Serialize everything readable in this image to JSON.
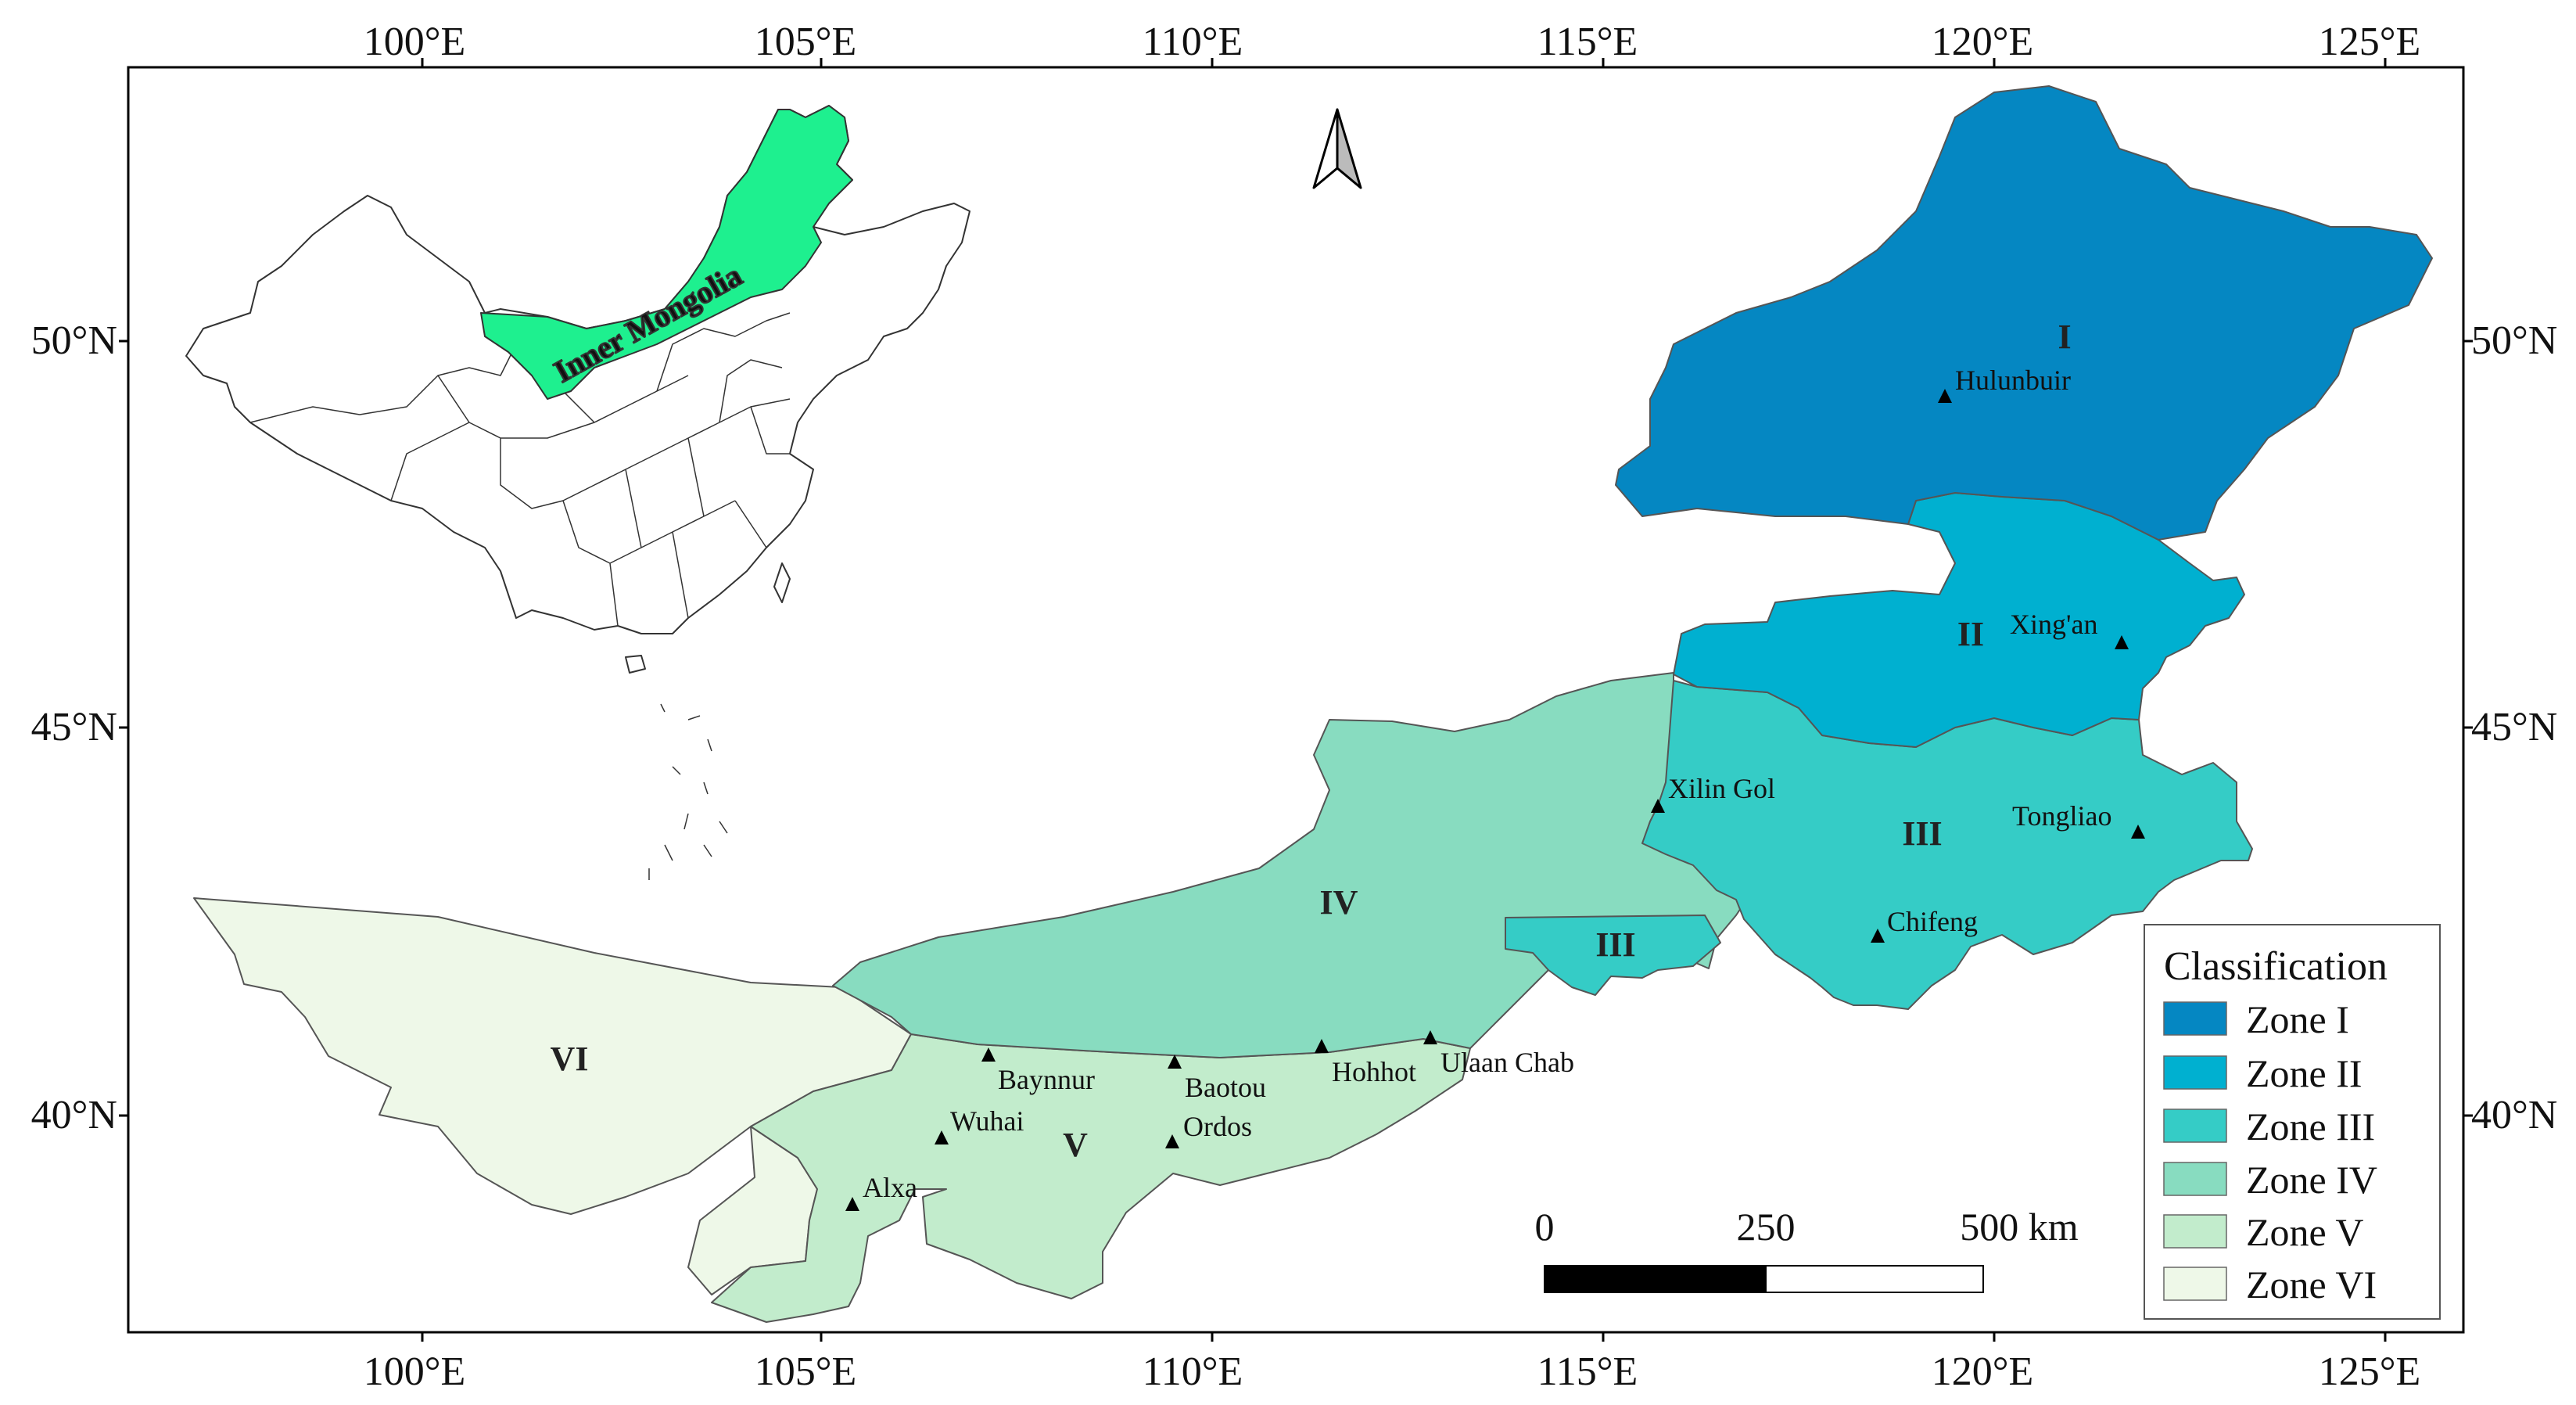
{
  "map": {
    "lon_labels": [
      "100°E",
      "105°E",
      "110°E",
      "115°E",
      "120°E",
      "125°E"
    ],
    "lat_labels": [
      "50°N",
      "45°N",
      "40°N"
    ],
    "inset_region_label": "Inner Mongolia",
    "zone_labels": [
      "I",
      "II",
      "III",
      "III",
      "IV",
      "V",
      "VI"
    ],
    "cities": [
      "Hulunbuir",
      "Xing'an",
      "Xilin Gol",
      "Tongliao",
      "Chifeng",
      "Baynnur",
      "Baotou",
      "Hohhot",
      "Ulaan Chab",
      "Wuhai",
      "Ordos",
      "Alxa"
    ],
    "north_arrow": "north-arrow-icon",
    "scale_bar": {
      "labels": [
        "0",
        "250",
        "500 km"
      ]
    }
  },
  "legend": {
    "title": "Classification",
    "items": [
      {
        "label": "Zone I",
        "color": "#0587c2"
      },
      {
        "label": "Zone II",
        "color": "#00b0d0"
      },
      {
        "label": "Zone III",
        "color": "#35ccc6"
      },
      {
        "label": "Zone IV",
        "color": "#88dcc0"
      },
      {
        "label": "Zone V",
        "color": "#c2eccc"
      },
      {
        "label": "Zone VI",
        "color": "#eef8e8"
      }
    ]
  },
  "colors": {
    "inset_highlight": "#1ef08f",
    "outline": "#555555"
  }
}
